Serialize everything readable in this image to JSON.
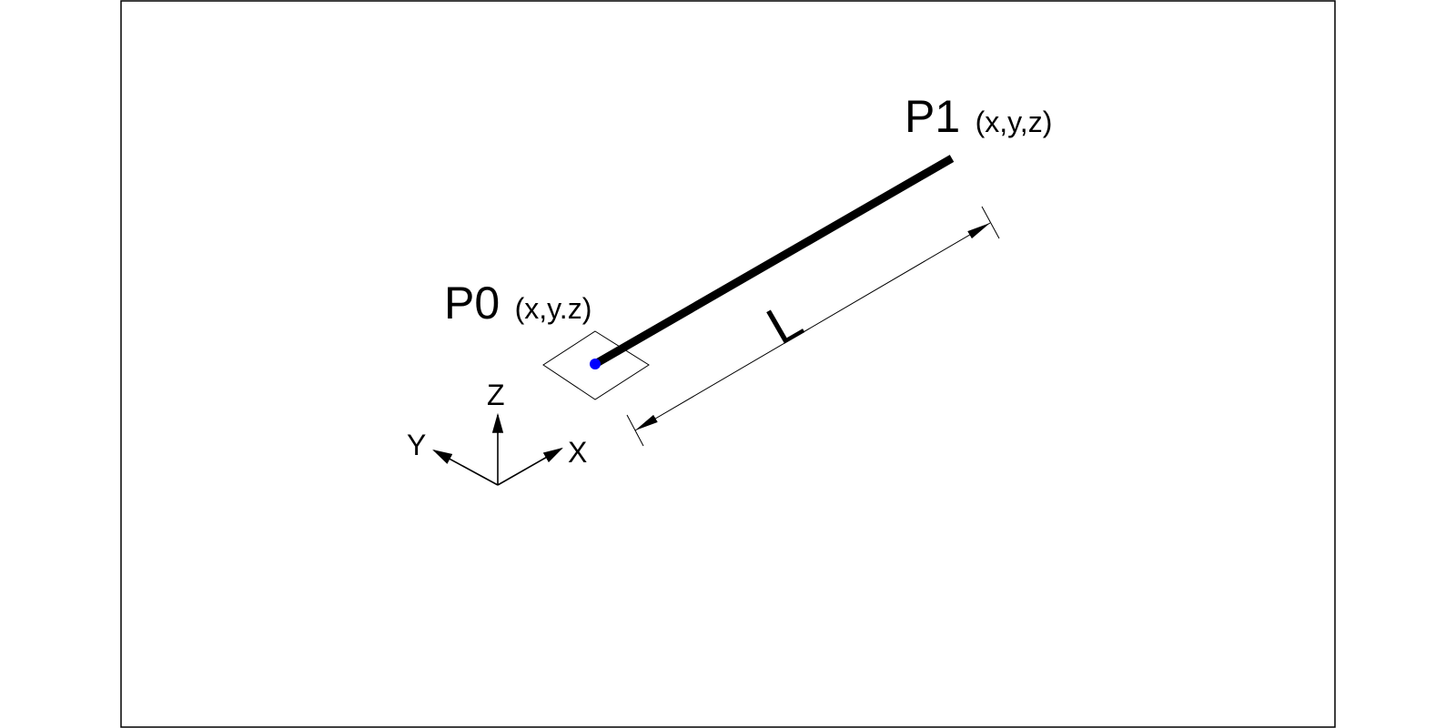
{
  "diagram": {
    "points": {
      "p0": {
        "name": "P0",
        "coords": "(x,y.z)"
      },
      "p1": {
        "name": "P1",
        "coords": "(x,y,z)"
      }
    },
    "dimension": {
      "label": "L"
    },
    "axes": {
      "x": "X",
      "y": "Y",
      "z": "Z"
    },
    "colors": {
      "stroke": "#000000",
      "base_point": "#0000ff",
      "background": "#ffffff"
    }
  }
}
